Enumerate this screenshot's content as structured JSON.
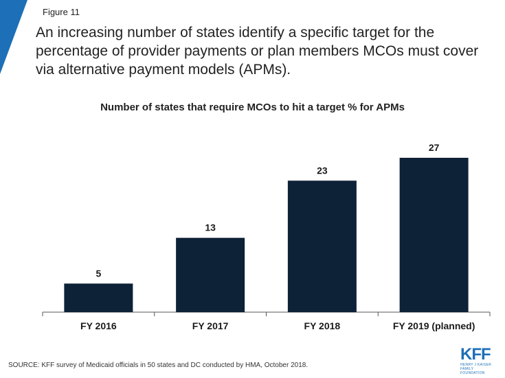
{
  "figure_label": "Figure 11",
  "headline": "An increasing number of states identify a specific target for the percentage of provider payments or plan members MCOs must cover via alternative payment models (APMs).",
  "source": "SOURCE: KFF survey of Medicaid officials in 50 states and DC conducted by HMA, October 2018.",
  "logo": {
    "main": "KFF",
    "sub_line1": "HENRY J KAISER",
    "sub_line2": "FAMILY FOUNDATION",
    "color": "#1d6fb8"
  },
  "colors": {
    "accent_corner": "#1d6fb8",
    "bar": "#0d2137"
  },
  "chart_data": {
    "type": "bar",
    "title": "Number of states that require MCOs to hit a target % for APMs",
    "categories": [
      "FY 2016",
      "FY 2017",
      "FY 2018",
      "FY 2019 (planned)"
    ],
    "values": [
      5,
      13,
      23,
      27
    ],
    "data_labels": [
      "5",
      "13",
      "23",
      "27"
    ],
    "xlabel": "",
    "ylabel": "",
    "ylim": [
      0,
      30
    ],
    "grid": false,
    "legend": "none"
  }
}
